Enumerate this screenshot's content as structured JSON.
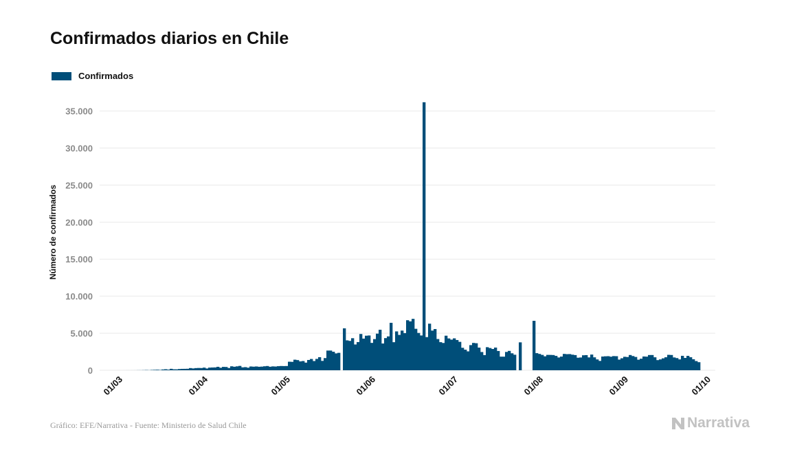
{
  "title": "Confirmados diarios en Chile",
  "footer": {
    "source": "Gráfico: EFE/Narrativa - Fuente: Ministerio de Salud Chile",
    "brand": "Narrativa"
  },
  "colors": {
    "bar": "#004e79",
    "grid": "#e9e9e9",
    "axis_text": "#8a8a8a",
    "brand": "#c2c2c2"
  },
  "chart_data": {
    "type": "bar",
    "title": "Confirmados diarios en Chile",
    "ylabel": "Número de confirmados",
    "xlabel": "",
    "ylim": [
      0,
      37000
    ],
    "yticks": [
      0,
      5000,
      10000,
      15000,
      20000,
      25000,
      30000,
      35000
    ],
    "ytick_labels": [
      "0",
      "5.000",
      "10.000",
      "15.000",
      "20.000",
      "25.000",
      "30.000",
      "35.000"
    ],
    "xticks": [
      "01/03",
      "01/04",
      "01/05",
      "01/06",
      "01/07",
      "01/08",
      "01/09",
      "01/10"
    ],
    "grid": true,
    "legend_position": "top-left",
    "series": [
      {
        "name": "Confirmados",
        "start_date": "2020-03-03",
        "values": [
          1,
          0,
          1,
          3,
          2,
          3,
          4,
          10,
          10,
          20,
          33,
          17,
          45,
          61,
          74,
          46,
          103,
          137,
          89,
          196,
          128,
          125,
          169,
          189,
          193,
          202,
          294,
          247,
          293,
          308,
          299,
          356,
          243,
          358,
          375,
          385,
          466,
          339,
          455,
          443,
          309,
          535,
          476,
          529,
          589,
          394,
          422,
          347,
          510,
          485,
          513,
          472,
          493,
          539,
          573,
          477,
          522,
          506,
          552,
          575,
          566,
          574,
          1153,
          1138,
          1427,
          1373,
          1197,
          1245,
          1032,
          1391,
          1524,
          1247,
          1533,
          1763,
          1268,
          1646,
          2659,
          2660,
          2502,
          2278,
          2353,
          0,
          5659,
          4038,
          3964,
          4328,
          3482,
          3806,
          4895,
          4276,
          4664,
          4696,
          3695,
          4207,
          4942,
          5470,
          3613,
          4342,
          4573,
          6405,
          3789,
          5246,
          4776,
          5355,
          5013,
          6754,
          6603,
          6938,
          5596,
          5036,
          4696,
          36179,
          4475,
          6290,
          5355,
          5563,
          4216,
          3794,
          3684,
          4665,
          4296,
          4135,
          4307,
          4084,
          3836,
          3034,
          2781,
          2552,
          3394,
          3691,
          3649,
          3058,
          2462,
          2050,
          3115,
          3002,
          2874,
          3063,
          2600,
          1838,
          1836,
          2473,
          2615,
          2291,
          2097,
          0,
          3769,
          0,
          0,
          0,
          0,
          6676,
          2311,
          2206,
          2074,
          1884,
          2076,
          2073,
          2056,
          1941,
          1726,
          1848,
          2207,
          2174,
          2185,
          2105,
          2049,
          1695,
          1725,
          2024,
          2045,
          1737,
          2119,
          1745,
          1463,
          1265,
          1855,
          1885,
          1901,
          1833,
          1912,
          1899,
          1440,
          1620,
          1819,
          1788,
          2059,
          1920,
          1796,
          1427,
          1561,
          1858,
          1839,
          2056,
          2057,
          1752,
          1372,
          1466,
          1611,
          1756,
          2083,
          2061,
          1730,
          1643,
          1467,
          1950,
          1667,
          1945,
          1758,
          1485,
          1243,
          1090
        ]
      }
    ]
  }
}
